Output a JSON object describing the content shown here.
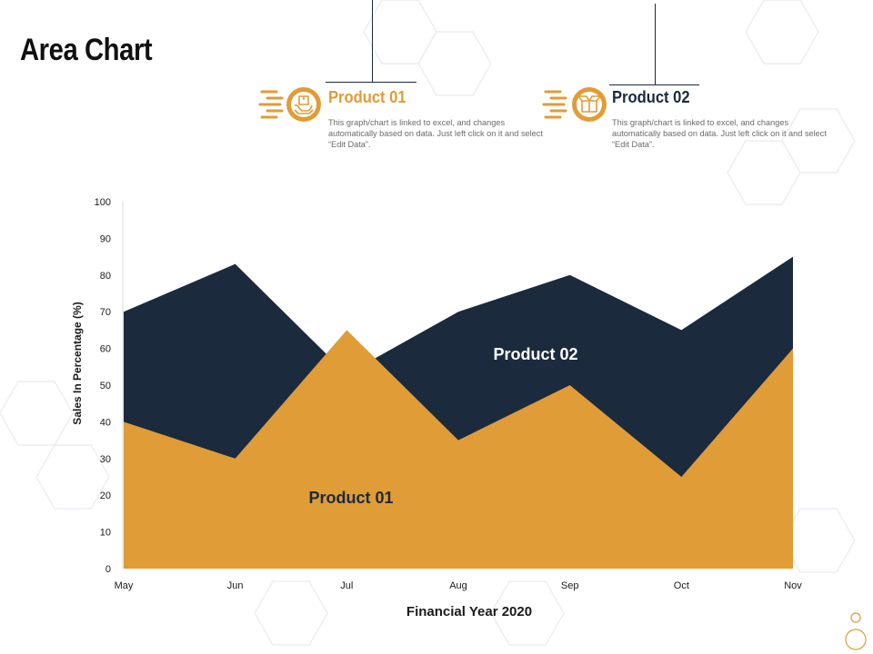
{
  "slide": {
    "title": "Area Chart"
  },
  "legend_cards": [
    {
      "title": "Product 01",
      "description": "This graph/chart is linked to excel, and changes automatically based on data. Just left click on it and select “Edit Data”.",
      "color": "#e09c36",
      "icon": "hands-holding-box-icon"
    },
    {
      "title": "Product 02",
      "description": "This graph/chart is linked to excel, and changes automatically based on data. Just left click on it and select “Edit Data”.",
      "color": "#1b2a3d",
      "icon": "open-box-icon"
    }
  ],
  "chart_data": {
    "type": "area",
    "categories": [
      "May",
      "Jun",
      "Jul",
      "Aug",
      "Sep",
      "Oct",
      "Nov"
    ],
    "series": [
      {
        "name": "Product 02",
        "values": [
          70,
          83,
          53,
          70,
          80,
          65,
          85
        ],
        "color": "#1b2a3d"
      },
      {
        "name": "Product 01",
        "values": [
          40,
          30,
          65,
          35,
          50,
          25,
          60
        ],
        "color": "#e09c36"
      }
    ],
    "xlabel": "Financial Year 2020",
    "ylabel": "Sales In Percentage (%)",
    "ylim": [
      0,
      100
    ],
    "yticks": [
      0,
      10,
      20,
      30,
      40,
      50,
      60,
      70,
      80,
      90,
      100
    ],
    "grid": false,
    "legend": "none"
  }
}
